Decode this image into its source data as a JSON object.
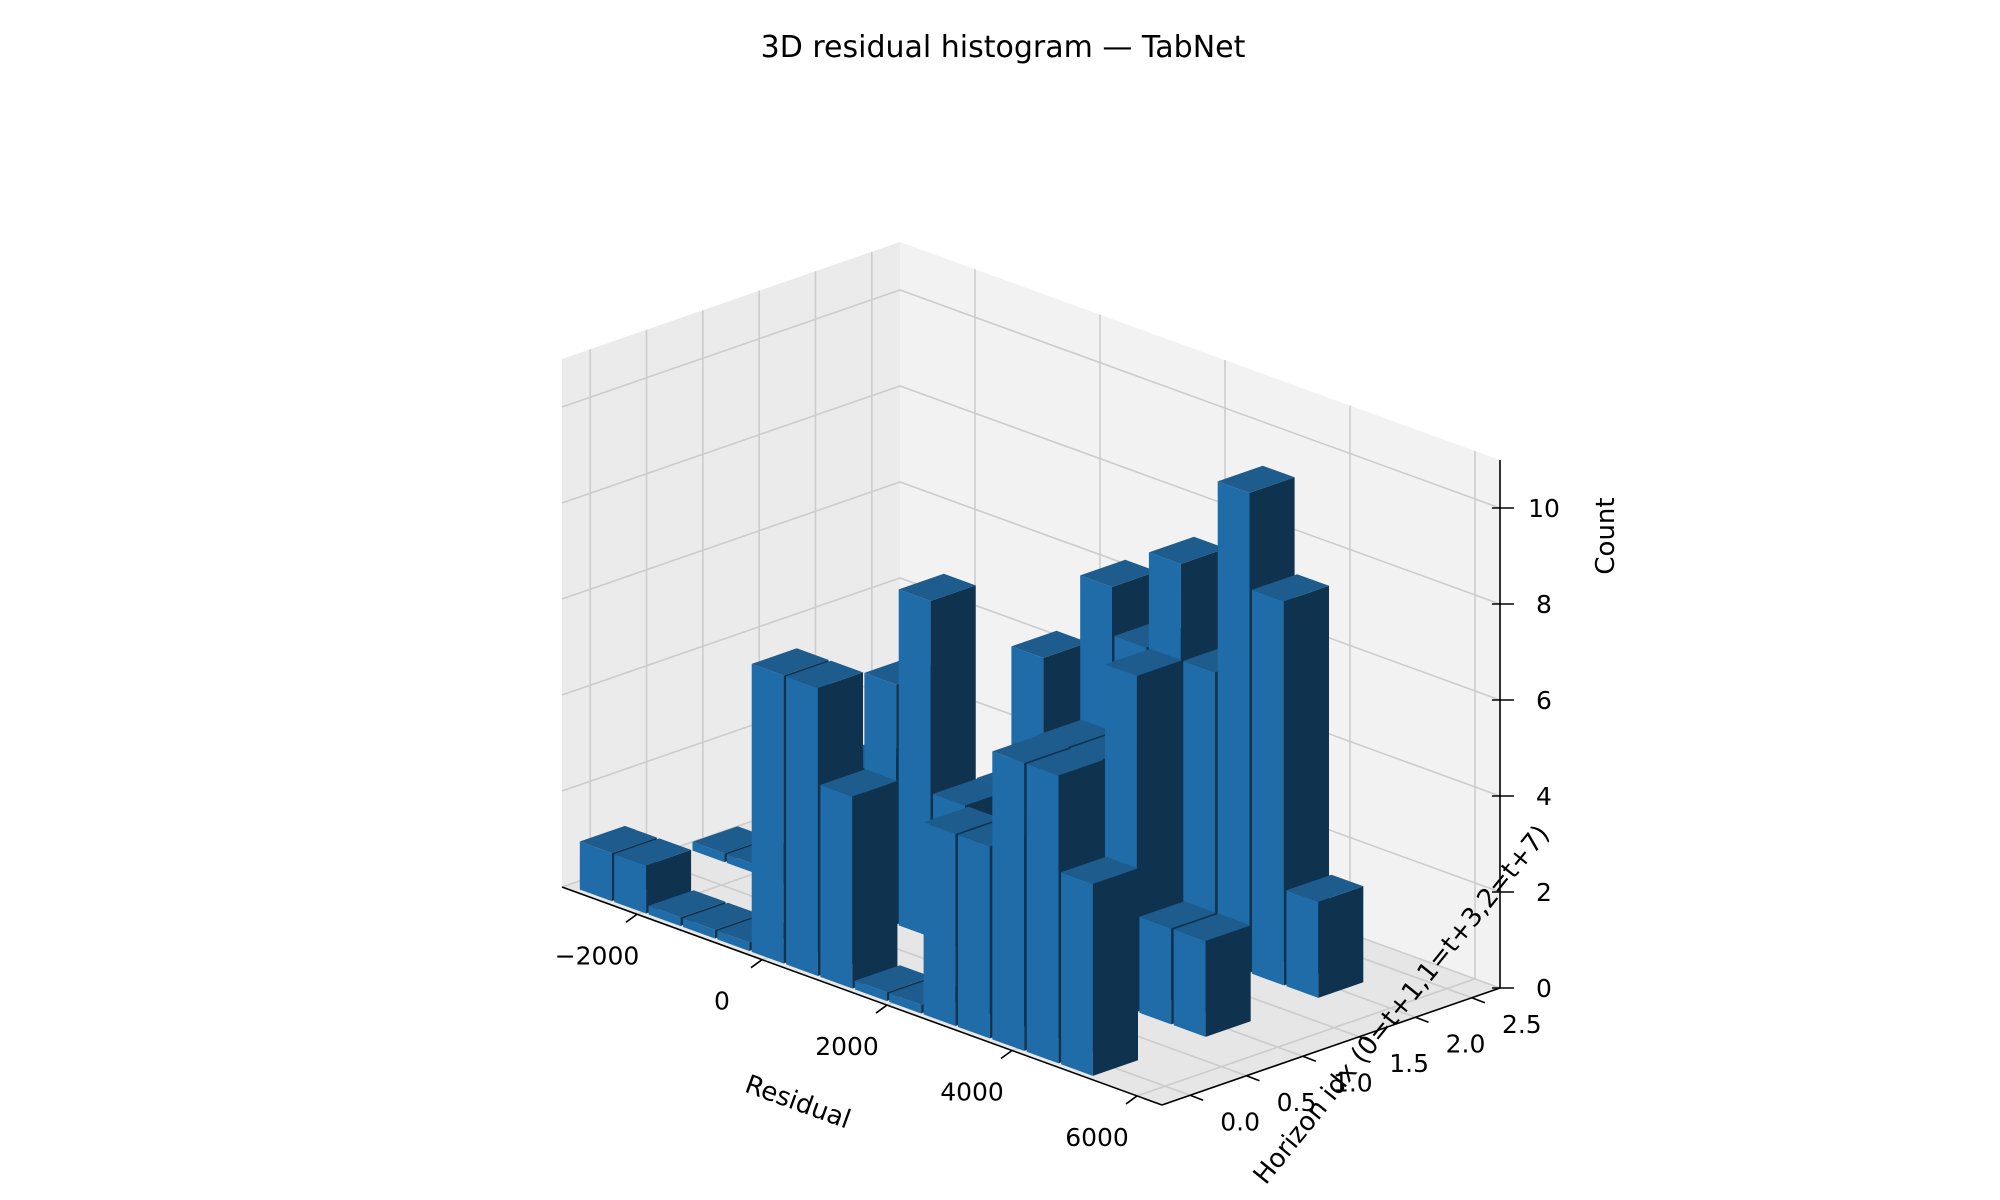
{
  "chart_data": {
    "type": "bar3d",
    "title": "3D residual histogram — TabNet",
    "xlabel": "Residual",
    "ylabel": "Horizon idx (0=t+1,1=t+3,2=t+7)",
    "zlabel": "Count",
    "xlim": [
      -3200,
      6400
    ],
    "ylim": [
      -0.25,
      2.75
    ],
    "zlim": [
      0,
      11
    ],
    "xticks": [
      "−2000",
      "0",
      "2000",
      "4000",
      "6000"
    ],
    "yticks": [
      "0.0",
      "0.5",
      "1.0",
      "1.5",
      "2.0",
      "2.5"
    ],
    "zticks": [
      "0",
      "2",
      "4",
      "6",
      "8",
      "10"
    ],
    "bin_width": 550,
    "depth": 0.4,
    "series": [
      {
        "horizon": 0,
        "bins": [
          {
            "x": -2750,
            "count": 1
          },
          {
            "x": -2200,
            "count": 1
          },
          {
            "x": -1650,
            "count": 0
          },
          {
            "x": -1100,
            "count": 0
          },
          {
            "x": -550,
            "count": 0
          },
          {
            "x": 0,
            "count": 6
          },
          {
            "x": 550,
            "count": 6
          },
          {
            "x": 1100,
            "count": 4
          },
          {
            "x": 1650,
            "count": 0
          },
          {
            "x": 2200,
            "count": 0
          },
          {
            "x": 2750,
            "count": 4
          },
          {
            "x": 3300,
            "count": 4
          },
          {
            "x": 3850,
            "count": 6
          },
          {
            "x": 4400,
            "count": 6
          },
          {
            "x": 4950,
            "count": 4
          }
        ]
      },
      {
        "horizon": 1,
        "bins": [
          {
            "x": -2750,
            "count": 0
          },
          {
            "x": -2200,
            "count": 0
          },
          {
            "x": -1650,
            "count": 0
          },
          {
            "x": -1100,
            "count": 0
          },
          {
            "x": -550,
            "count": 3
          },
          {
            "x": 0,
            "count": 5
          },
          {
            "x": 550,
            "count": 7
          },
          {
            "x": 1100,
            "count": 3
          },
          {
            "x": 1650,
            "count": 2
          },
          {
            "x": 2200,
            "count": 3
          },
          {
            "x": 2750,
            "count": 5
          },
          {
            "x": 3300,
            "count": 5
          },
          {
            "x": 3850,
            "count": 7
          },
          {
            "x": 4400,
            "count": 2
          },
          {
            "x": 4950,
            "count": 2
          }
        ]
      },
      {
        "horizon": 2,
        "bins": [
          {
            "x": -2750,
            "count": 0
          },
          {
            "x": -2200,
            "count": 0
          },
          {
            "x": -1650,
            "count": 1
          },
          {
            "x": -1100,
            "count": 0
          },
          {
            "x": -550,
            "count": 0
          },
          {
            "x": 0,
            "count": 2
          },
          {
            "x": 550,
            "count": 5
          },
          {
            "x": 1100,
            "count": 3
          },
          {
            "x": 1650,
            "count": 7
          },
          {
            "x": 2200,
            "count": 6
          },
          {
            "x": 2750,
            "count": 8
          },
          {
            "x": 3300,
            "count": 6
          },
          {
            "x": 3850,
            "count": 10
          },
          {
            "x": 4400,
            "count": 8
          },
          {
            "x": 4950,
            "count": 2
          }
        ]
      }
    ]
  }
}
